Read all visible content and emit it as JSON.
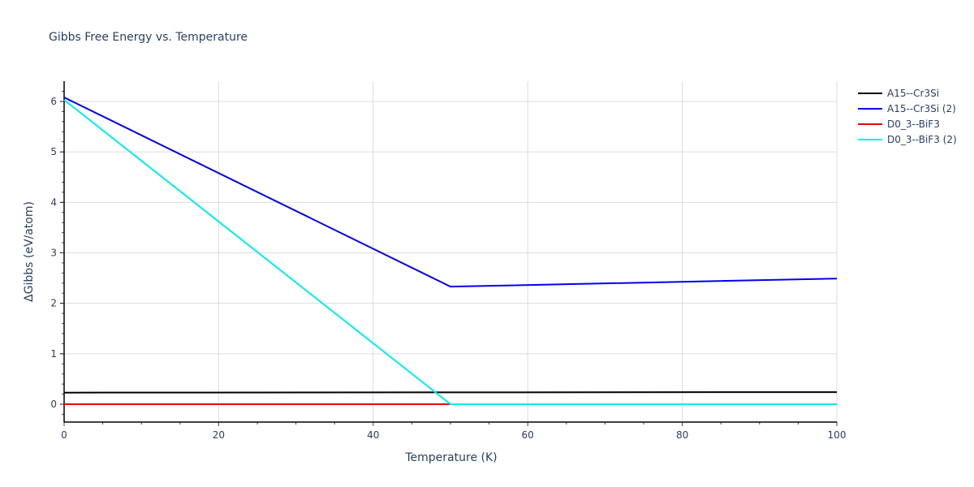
{
  "chart_data": {
    "type": "line",
    "title": "Gibbs Free Energy vs. Temperature",
    "xlabel": "Temperature (K)",
    "ylabel": "ΔGibbs (eV/atom)",
    "xlim": [
      0,
      100
    ],
    "ylim": [
      -0.35,
      6.4
    ],
    "xticks": [
      0,
      20,
      40,
      60,
      80,
      100
    ],
    "yticks": [
      0,
      1,
      2,
      3,
      4,
      5,
      6
    ],
    "grid": true,
    "legend_position": "right-top",
    "series": [
      {
        "name": "A15--Cr3Si",
        "color": "#000000",
        "x": [
          0,
          50,
          100
        ],
        "y": [
          0.23,
          0.235,
          0.24
        ]
      },
      {
        "name": "A15--Cr3Si (2)",
        "color": "#0000ee",
        "x": [
          0,
          50,
          100
        ],
        "y": [
          6.08,
          2.33,
          2.49
        ]
      },
      {
        "name": "D0_3--BiF3",
        "color": "#ee0000",
        "x": [
          0,
          50
        ],
        "y": [
          0,
          0
        ]
      },
      {
        "name": "D0_3--BiF3 (2)",
        "color": "#00eeee",
        "x": [
          0,
          50,
          100
        ],
        "y": [
          6.03,
          0,
          0
        ]
      }
    ]
  }
}
